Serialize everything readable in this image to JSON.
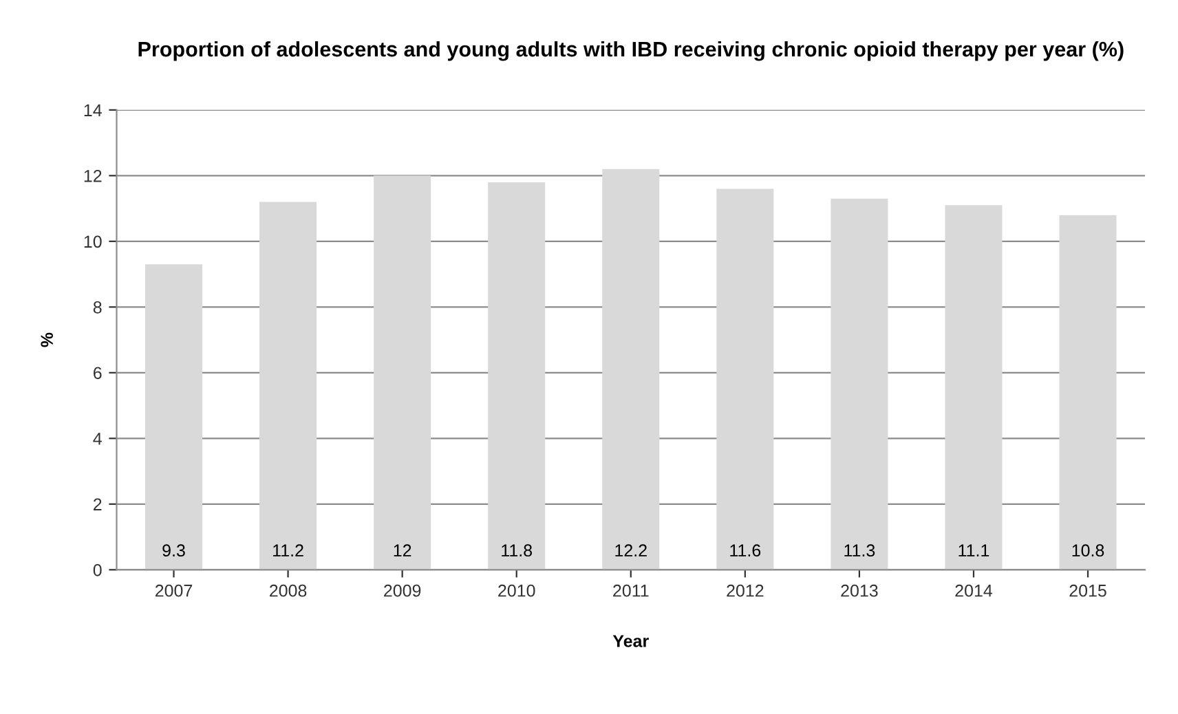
{
  "chart_data": {
    "type": "bar",
    "title": "Proportion of adolescents and young adults with IBD receiving chronic opioid therapy per year (%)",
    "xlabel": "Year",
    "ylabel": "%",
    "categories": [
      "2007",
      "2008",
      "2009",
      "2010",
      "2011",
      "2012",
      "2013",
      "2014",
      "2015"
    ],
    "values": [
      9.3,
      11.2,
      12,
      11.8,
      12.2,
      11.6,
      11.3,
      11.1,
      10.8
    ],
    "color": "#d9d9d9",
    "ylim": [
      0,
      14
    ],
    "yticks": [
      0,
      2,
      4,
      6,
      8,
      10,
      12,
      14
    ],
    "grid": "y",
    "data_labels": true,
    "legend": false
  }
}
